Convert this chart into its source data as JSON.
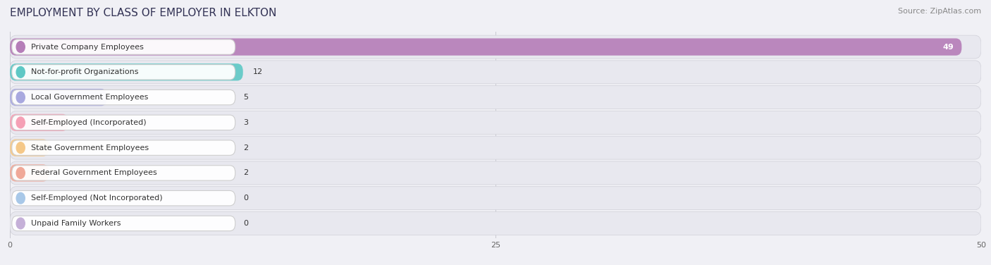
{
  "title": "EMPLOYMENT BY CLASS OF EMPLOYER IN ELKTON",
  "source": "Source: ZipAtlas.com",
  "categories": [
    "Private Company Employees",
    "Not-for-profit Organizations",
    "Local Government Employees",
    "Self-Employed (Incorporated)",
    "State Government Employees",
    "Federal Government Employees",
    "Self-Employed (Not Incorporated)",
    "Unpaid Family Workers"
  ],
  "values": [
    49,
    12,
    5,
    3,
    2,
    2,
    0,
    0
  ],
  "bar_colors": [
    "#b57db8",
    "#5ec8c5",
    "#a8a8df",
    "#f5a0b5",
    "#f5c888",
    "#f0a898",
    "#a8c8e8",
    "#c5b0d8"
  ],
  "xlim_max": 50,
  "xticks": [
    0,
    25,
    50
  ],
  "bg_color": "#f0f0f5",
  "row_bg_color": "#e8e8ef",
  "label_box_color": "#ffffff",
  "title_fontsize": 11,
  "label_fontsize": 8,
  "value_fontsize": 8,
  "source_fontsize": 8
}
